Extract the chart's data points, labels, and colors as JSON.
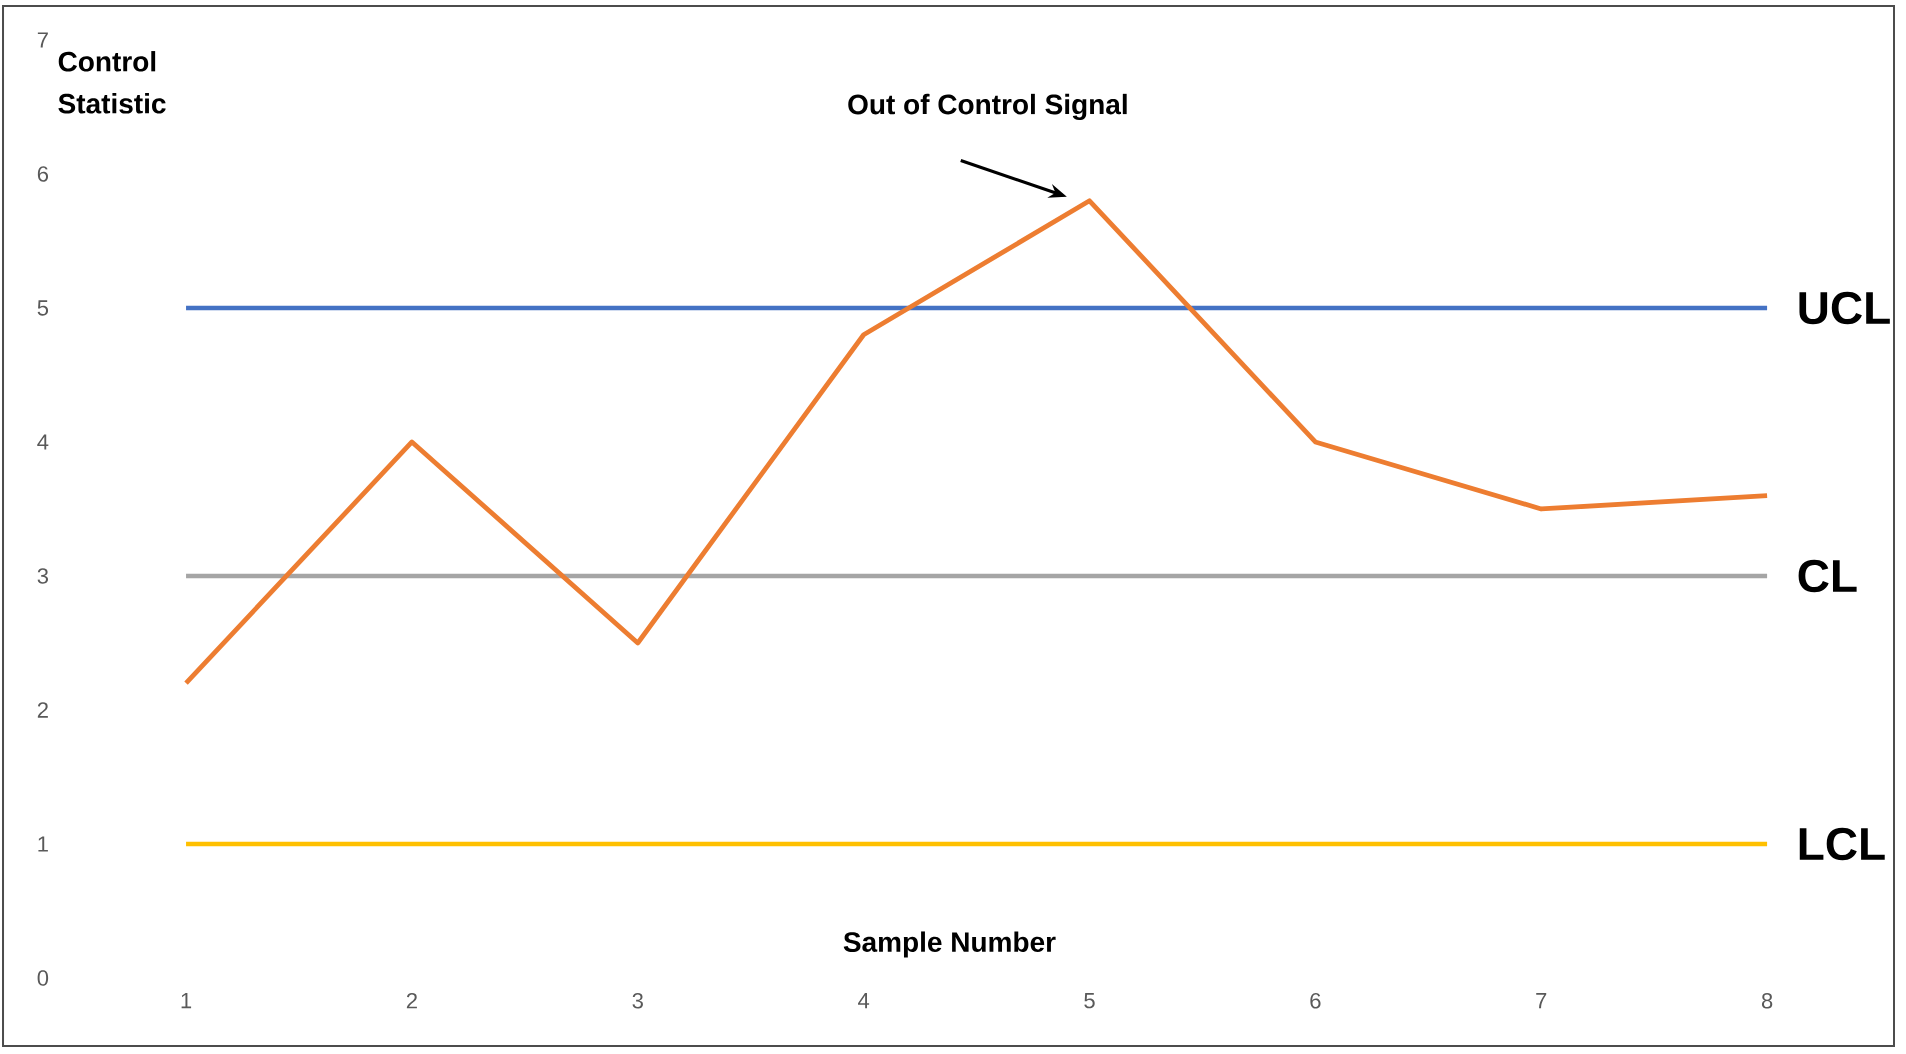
{
  "chart_data": {
    "type": "line",
    "xlabel": "Sample Number",
    "ylabel": "Control Statistic",
    "categories": [
      "1",
      "2",
      "3",
      "4",
      "5",
      "6",
      "7",
      "8"
    ],
    "series": [
      {
        "color": "#ed7d31",
        "values": [
          2.2,
          4.0,
          2.5,
          4.8,
          5.8,
          4.0,
          3.5,
          3.6
        ]
      }
    ],
    "ylim": [
      0,
      7
    ],
    "yticks": [
      0,
      1,
      2,
      3,
      4,
      5,
      6,
      7
    ],
    "ref_lines": [
      {
        "axis": "y",
        "value": 5,
        "label": "UCL",
        "color": "#4472c4"
      },
      {
        "axis": "y",
        "value": 3,
        "label": "CL",
        "color": "#a5a5a5"
      },
      {
        "axis": "y",
        "value": 1,
        "label": "LCL",
        "color": "#ffc000"
      }
    ],
    "annotations": [
      {
        "text": "Out of Control Signal",
        "x": "5",
        "y": 5.8
      }
    ]
  }
}
